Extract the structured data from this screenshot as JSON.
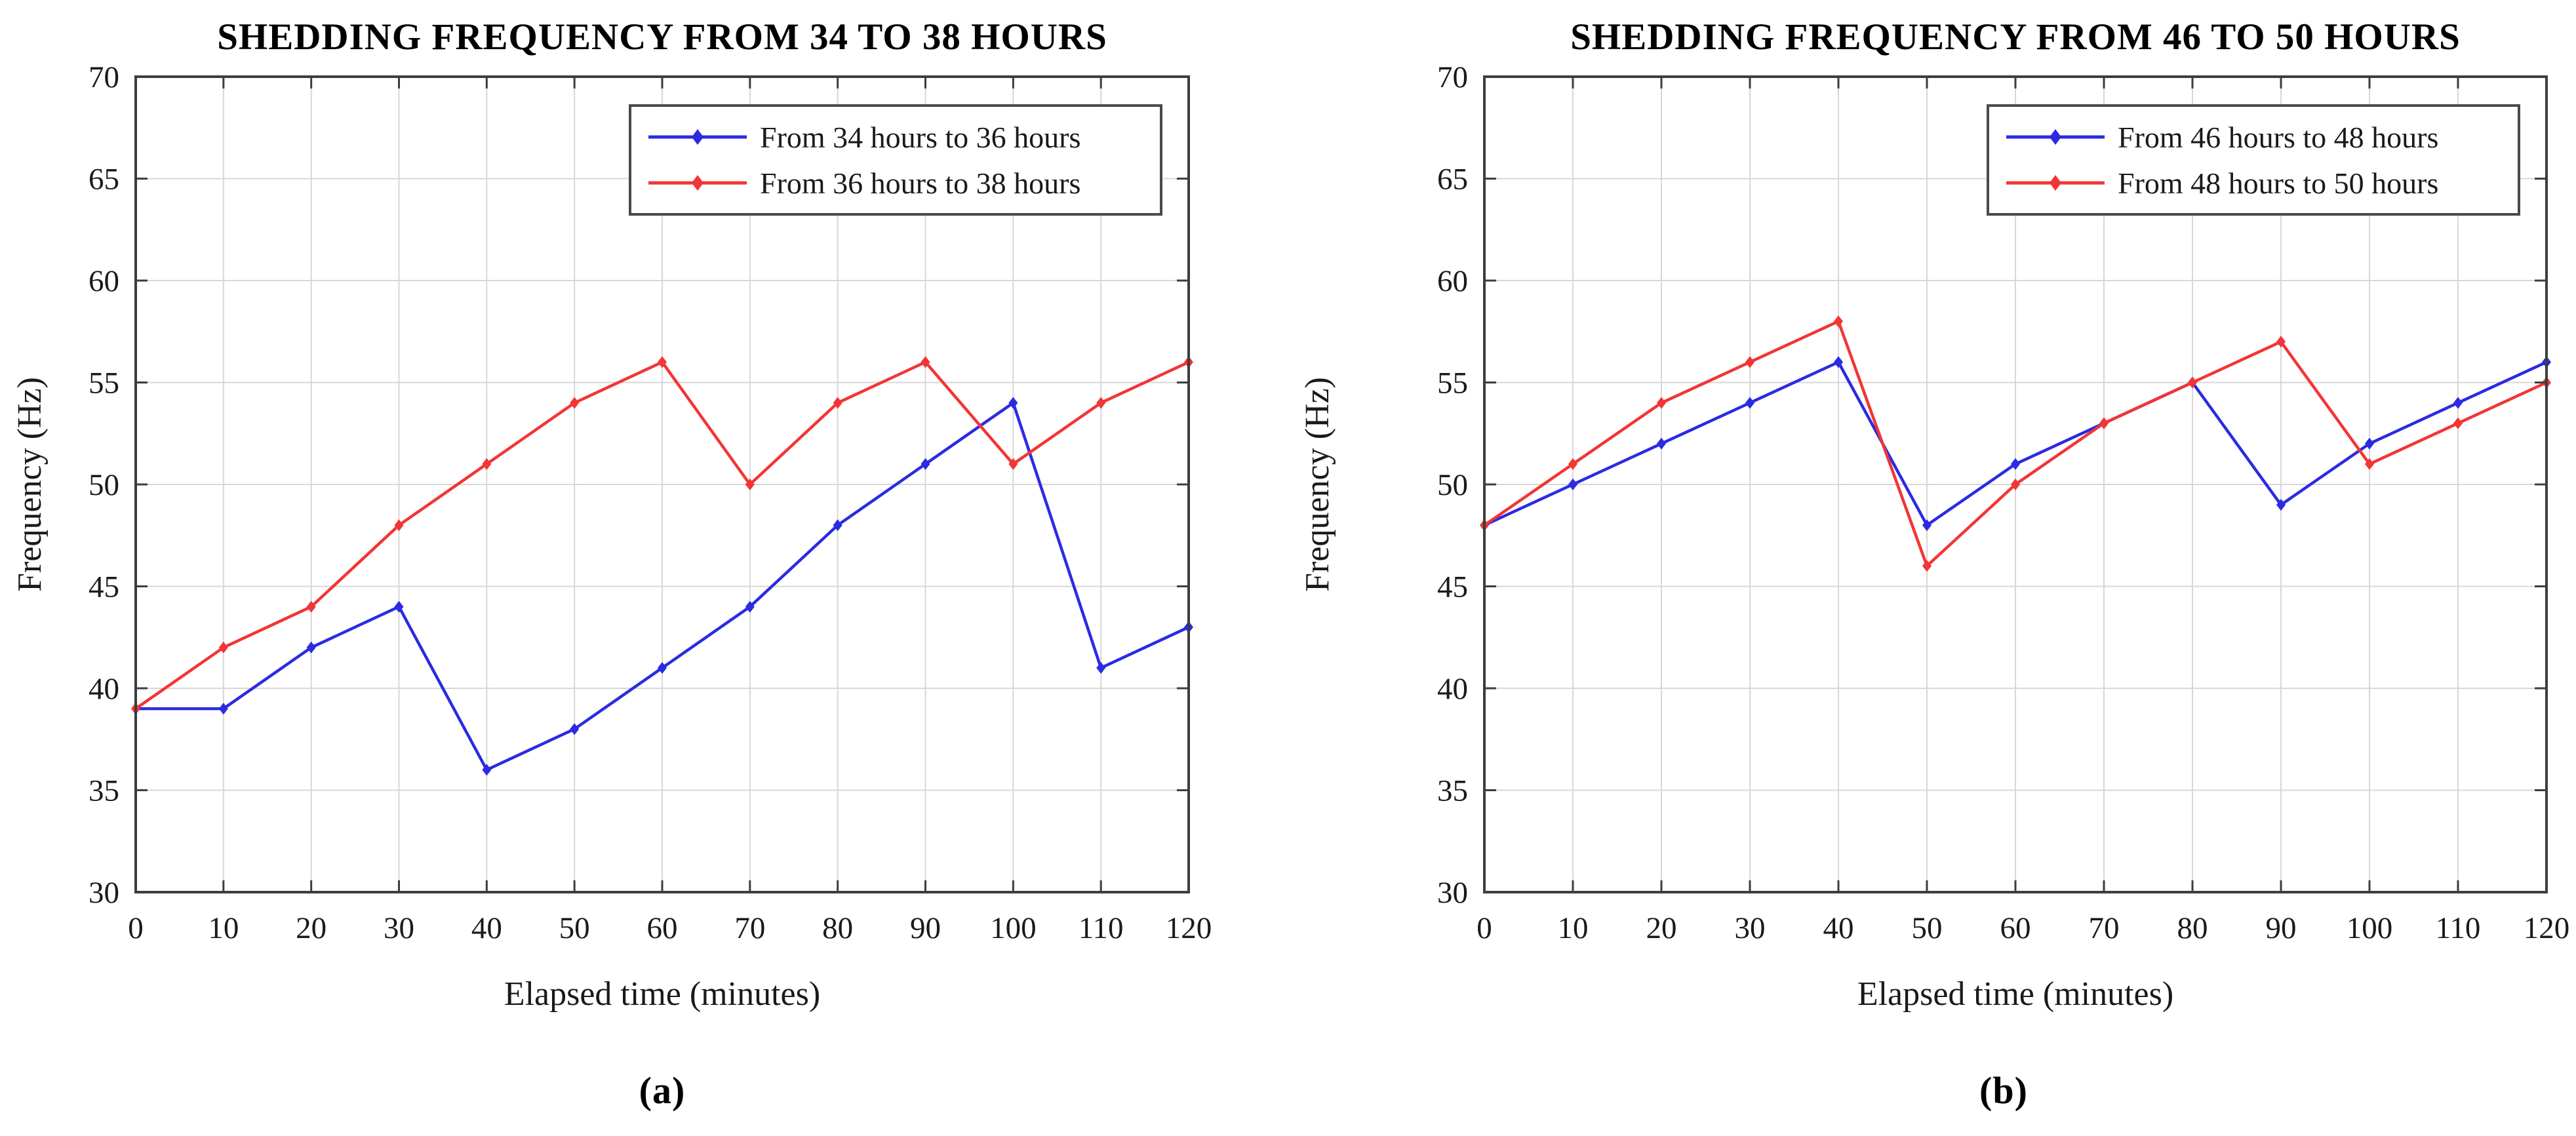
{
  "figure": {
    "background_color": "#ffffff",
    "axis_color": "#3d3d3d",
    "grid_color": "#d7d7d7",
    "text_color": "#1a1a1a"
  },
  "chart_data": [
    {
      "type": "line",
      "title": "SHEDDING FREQUENCY FROM 34 TO 38 HOURS",
      "xlabel": "Elapsed time (minutes)",
      "ylabel": "Frequency (Hz)",
      "caption": "(a)",
      "xlim": [
        0,
        120
      ],
      "ylim": [
        30,
        70
      ],
      "x_ticks": [
        0,
        10,
        20,
        30,
        40,
        50,
        60,
        70,
        80,
        90,
        100,
        110,
        120
      ],
      "y_ticks": [
        30,
        35,
        40,
        45,
        50,
        55,
        60,
        65,
        70
      ],
      "grid": true,
      "legend_position": "top-right",
      "x": [
        0,
        10,
        20,
        30,
        40,
        50,
        60,
        70,
        80,
        90,
        100,
        110,
        120
      ],
      "series": [
        {
          "name": "From 34 hours to 36 hours",
          "color": "#2b2be2",
          "marker": "diamond",
          "values": [
            39,
            39,
            42,
            44,
            36,
            38,
            41,
            44,
            48,
            51,
            54,
            41,
            43
          ]
        },
        {
          "name": "From 36 hours to 38 hours",
          "color": "#f23535",
          "marker": "diamond",
          "values": [
            39,
            42,
            44,
            48,
            51,
            54,
            56,
            50,
            54,
            56,
            51,
            54,
            56
          ]
        }
      ]
    },
    {
      "type": "line",
      "title": "SHEDDING FREQUENCY FROM 46 TO 50 HOURS",
      "xlabel": "Elapsed time (minutes)",
      "ylabel": "Frequency (Hz)",
      "caption": "(b)",
      "xlim": [
        0,
        120
      ],
      "ylim": [
        30,
        70
      ],
      "x_ticks": [
        0,
        10,
        20,
        30,
        40,
        50,
        60,
        70,
        80,
        90,
        100,
        110,
        120
      ],
      "y_ticks": [
        30,
        35,
        40,
        45,
        50,
        55,
        60,
        65,
        70
      ],
      "grid": true,
      "legend_position": "top-right",
      "x": [
        0,
        10,
        20,
        30,
        40,
        50,
        60,
        70,
        80,
        90,
        100,
        110,
        120
      ],
      "series": [
        {
          "name": "From 46 hours to 48 hours",
          "color": "#2b2be2",
          "marker": "diamond",
          "values": [
            48,
            50,
            52,
            54,
            56,
            48,
            51,
            53,
            55,
            49,
            52,
            54,
            56
          ]
        },
        {
          "name": "From 48 hours to 50 hours",
          "color": "#f23535",
          "marker": "diamond",
          "values": [
            48,
            51,
            54,
            56,
            58,
            46,
            50,
            53,
            55,
            57,
            51,
            53,
            55
          ]
        }
      ]
    }
  ]
}
